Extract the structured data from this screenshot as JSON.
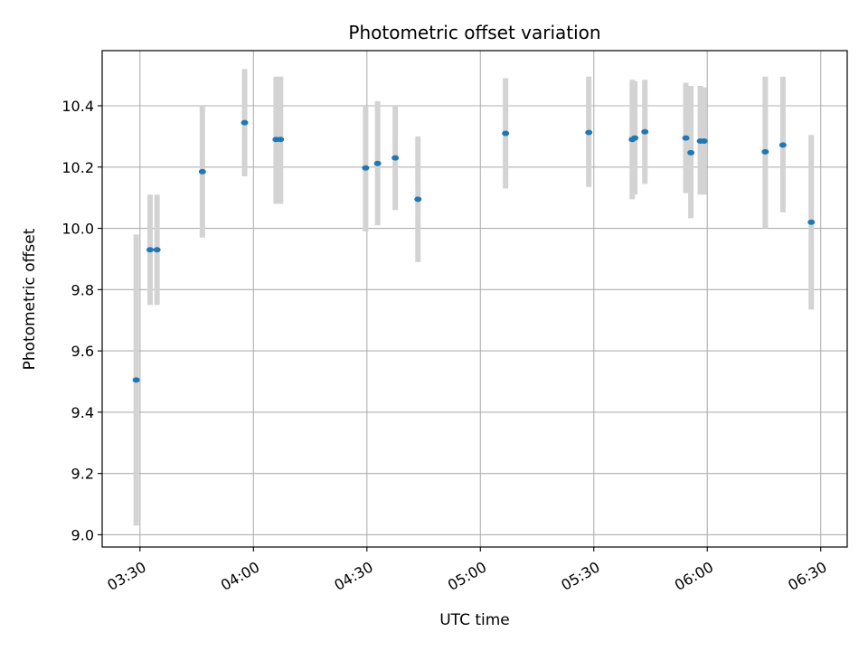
{
  "chart_data": {
    "type": "scatter",
    "title": "Photometric offset variation",
    "xlabel": "UTC time",
    "ylabel": "Photometric offset",
    "xlim": [
      "03:20",
      "06:37"
    ],
    "ylim": [
      8.96,
      10.58
    ],
    "x_ticks": [
      "03:30",
      "04:00",
      "04:30",
      "05:00",
      "05:30",
      "06:00",
      "06:30"
    ],
    "y_ticks": [
      "9.0",
      "9.2",
      "9.4",
      "9.6",
      "9.8",
      "10.0",
      "10.2",
      "10.4"
    ],
    "grid": true,
    "colors": {
      "points": "#1f77b4",
      "errorbars": "#d3d3d3",
      "grid": "#b0b0b0"
    },
    "points": [
      {
        "x": "03:29:00",
        "y": 9.505,
        "yerr_low": 9.03,
        "yerr_high": 9.98
      },
      {
        "x": "03:32:40",
        "y": 9.93,
        "yerr_low": 9.75,
        "yerr_high": 10.11
      },
      {
        "x": "03:34:30",
        "y": 9.93,
        "yerr_low": 9.75,
        "yerr_high": 10.11
      },
      {
        "x": "03:46:30",
        "y": 10.185,
        "yerr_low": 9.97,
        "yerr_high": 10.4
      },
      {
        "x": "03:57:40",
        "y": 10.345,
        "yerr_low": 10.17,
        "yerr_high": 10.52
      },
      {
        "x": "04:06:00",
        "y": 10.29,
        "yerr_low": 10.08,
        "yerr_high": 10.495
      },
      {
        "x": "04:07:10",
        "y": 10.29,
        "yerr_low": 10.08,
        "yerr_high": 10.495
      },
      {
        "x": "04:29:40",
        "y": 10.197,
        "yerr_low": 9.99,
        "yerr_high": 10.4
      },
      {
        "x": "04:32:50",
        "y": 10.212,
        "yerr_low": 10.01,
        "yerr_high": 10.415
      },
      {
        "x": "04:37:30",
        "y": 10.23,
        "yerr_low": 10.06,
        "yerr_high": 10.4
      },
      {
        "x": "04:43:30",
        "y": 10.095,
        "yerr_low": 9.89,
        "yerr_high": 10.3
      },
      {
        "x": "05:06:40",
        "y": 10.31,
        "yerr_low": 10.13,
        "yerr_high": 10.49
      },
      {
        "x": "05:28:40",
        "y": 10.313,
        "yerr_low": 10.135,
        "yerr_high": 10.495
      },
      {
        "x": "05:40:10",
        "y": 10.29,
        "yerr_low": 10.095,
        "yerr_high": 10.485
      },
      {
        "x": "05:40:50",
        "y": 10.295,
        "yerr_low": 10.11,
        "yerr_high": 10.48
      },
      {
        "x": "05:43:30",
        "y": 10.315,
        "yerr_low": 10.145,
        "yerr_high": 10.485
      },
      {
        "x": "05:54:20",
        "y": 10.295,
        "yerr_low": 10.115,
        "yerr_high": 10.475
      },
      {
        "x": "05:55:40",
        "y": 10.247,
        "yerr_low": 10.033,
        "yerr_high": 10.465
      },
      {
        "x": "05:58:10",
        "y": 10.285,
        "yerr_low": 10.11,
        "yerr_high": 10.465
      },
      {
        "x": "05:59:10",
        "y": 10.285,
        "yerr_low": 10.11,
        "yerr_high": 10.46
      },
      {
        "x": "06:15:20",
        "y": 10.25,
        "yerr_low": 10.0,
        "yerr_high": 10.495
      },
      {
        "x": "06:20:00",
        "y": 10.272,
        "yerr_low": 10.052,
        "yerr_high": 10.495
      },
      {
        "x": "06:27:30",
        "y": 10.02,
        "yerr_low": 9.735,
        "yerr_high": 10.305
      }
    ]
  }
}
